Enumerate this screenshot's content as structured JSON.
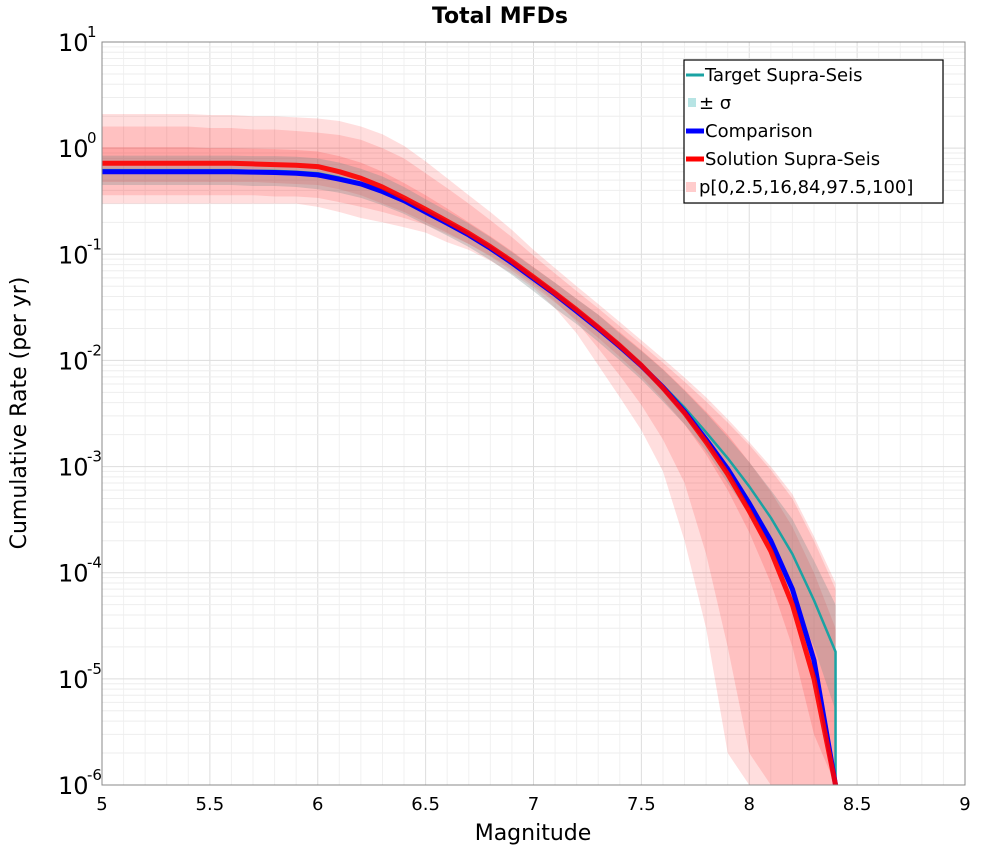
{
  "chart_data": {
    "type": "line",
    "title": "Total MFDs",
    "xlabel": "Magnitude",
    "ylabel": "Cumulative Rate (per yr)",
    "xlim": [
      5,
      9
    ],
    "ylim": [
      1e-06,
      10
    ],
    "yscale": "log",
    "grid": true,
    "xticks": [
      "5",
      "5.5",
      "6",
      "6.5",
      "7",
      "7.5",
      "8",
      "8.5",
      "9"
    ],
    "yticks": [
      {
        "base": "10",
        "exp": "1"
      },
      {
        "base": "10",
        "exp": "0"
      },
      {
        "base": "10",
        "exp": "-1"
      },
      {
        "base": "10",
        "exp": "-2"
      },
      {
        "base": "10",
        "exp": "-3"
      },
      {
        "base": "10",
        "exp": "-4"
      },
      {
        "base": "10",
        "exp": "-5"
      },
      {
        "base": "10",
        "exp": "-6"
      }
    ],
    "legend_position": "top-right",
    "legend": [
      "Target Supra-Seis",
      "± σ",
      "Comparison",
      "Solution Supra-Seis",
      "p[0,2.5,16,84,97.5,100]"
    ],
    "x": [
      5.0,
      5.1,
      5.2,
      5.3,
      5.4,
      5.5,
      5.6,
      5.7,
      5.8,
      5.9,
      6.0,
      6.1,
      6.2,
      6.3,
      6.4,
      6.5,
      6.6,
      6.7,
      6.8,
      6.9,
      7.0,
      7.1,
      7.2,
      7.3,
      7.4,
      7.5,
      7.6,
      7.7,
      7.8,
      7.9,
      8.0,
      8.1,
      8.2,
      8.3,
      8.4
    ],
    "series": [
      {
        "name": "Target Supra-Seis",
        "color": "#1aa3a3",
        "values": [
          0.62,
          0.62,
          0.62,
          0.62,
          0.62,
          0.62,
          0.62,
          0.61,
          0.61,
          0.6,
          0.58,
          0.53,
          0.47,
          0.4,
          0.32,
          0.25,
          0.195,
          0.15,
          0.112,
          0.082,
          0.058,
          0.041,
          0.029,
          0.02,
          0.0135,
          0.009,
          0.0058,
          0.0036,
          0.0021,
          0.0012,
          0.00065,
          0.00033,
          0.00015,
          5.5e-05,
          1.8e-05
        ],
        "sigma_band": {
          "color": "#b7e4e4",
          "lower": [
            0.45,
            0.45,
            0.45,
            0.45,
            0.45,
            0.45,
            0.45,
            0.44,
            0.44,
            0.43,
            0.41,
            0.38,
            0.34,
            0.29,
            0.24,
            0.19,
            0.15,
            0.117,
            0.088,
            0.064,
            0.045,
            0.031,
            0.022,
            0.015,
            0.01,
            0.0066,
            0.0041,
            0.0025,
            0.0014,
            0.0007,
            0.00035,
            0.00016,
            6e-05,
            2e-05,
            5e-06
          ],
          "upper": [
            0.85,
            0.85,
            0.85,
            0.85,
            0.85,
            0.85,
            0.85,
            0.84,
            0.84,
            0.83,
            0.8,
            0.73,
            0.64,
            0.54,
            0.43,
            0.33,
            0.255,
            0.195,
            0.145,
            0.105,
            0.075,
            0.054,
            0.038,
            0.027,
            0.018,
            0.0123,
            0.0082,
            0.0052,
            0.0032,
            0.0019,
            0.0011,
            0.0006,
            0.00032,
            0.00013,
            5e-05
          ]
        }
      },
      {
        "name": "Comparison",
        "color": "#0000ff",
        "values": [
          0.6,
          0.6,
          0.6,
          0.6,
          0.6,
          0.6,
          0.6,
          0.595,
          0.59,
          0.58,
          0.56,
          0.51,
          0.46,
          0.39,
          0.32,
          0.25,
          0.196,
          0.152,
          0.114,
          0.083,
          0.059,
          0.042,
          0.029,
          0.02,
          0.0135,
          0.0089,
          0.0056,
          0.0033,
          0.0018,
          0.00095,
          0.00045,
          0.0002,
          7e-05,
          1.5e-05,
          1e-06
        ]
      },
      {
        "name": "Solution Supra-Seis",
        "color": "#ff0000",
        "values": [
          0.72,
          0.72,
          0.72,
          0.72,
          0.72,
          0.72,
          0.72,
          0.71,
          0.7,
          0.69,
          0.67,
          0.6,
          0.52,
          0.43,
          0.34,
          0.265,
          0.205,
          0.158,
          0.118,
          0.086,
          0.061,
          0.043,
          0.03,
          0.0205,
          0.0138,
          0.009,
          0.0055,
          0.0032,
          0.0017,
          0.00085,
          0.00038,
          0.00016,
          5e-05,
          1e-05,
          1e-06
        ]
      }
    ],
    "percentile_bands": {
      "name": "p[0,2.5,16,84,97.5,100]",
      "color": "#ff0000",
      "outer": {
        "opacity": 0.13,
        "lower": [
          0.3,
          0.3,
          0.3,
          0.3,
          0.3,
          0.3,
          0.3,
          0.3,
          0.3,
          0.3,
          0.28,
          0.25,
          0.22,
          0.2,
          0.18,
          0.16,
          0.13,
          0.11,
          0.087,
          0.066,
          0.048,
          0.031,
          0.018,
          0.009,
          0.0045,
          0.0022,
          0.0009,
          0.0002,
          3e-05,
          2e-06,
          1e-06,
          1e-06,
          1e-06,
          1e-06,
          1e-06
        ],
        "upper": [
          2.1,
          2.1,
          2.1,
          2.1,
          2.1,
          2.05,
          2.05,
          2.0,
          2.0,
          1.95,
          1.9,
          1.8,
          1.6,
          1.35,
          1.05,
          0.75,
          0.52,
          0.36,
          0.25,
          0.17,
          0.11,
          0.074,
          0.05,
          0.034,
          0.023,
          0.0155,
          0.0104,
          0.0069,
          0.0045,
          0.0028,
          0.0017,
          0.001,
          0.00055,
          0.00022,
          8e-05
        ]
      },
      "middle": {
        "opacity": 0.13,
        "lower": [
          0.36,
          0.36,
          0.36,
          0.36,
          0.36,
          0.36,
          0.36,
          0.36,
          0.35,
          0.35,
          0.34,
          0.31,
          0.28,
          0.25,
          0.22,
          0.19,
          0.155,
          0.125,
          0.097,
          0.073,
          0.053,
          0.036,
          0.023,
          0.013,
          0.0072,
          0.0038,
          0.0018,
          0.0007,
          0.00015,
          2e-05,
          2e-06,
          1e-06,
          1e-06,
          1e-06,
          1e-06
        ],
        "upper": [
          1.6,
          1.6,
          1.6,
          1.6,
          1.6,
          1.55,
          1.55,
          1.5,
          1.5,
          1.45,
          1.4,
          1.33,
          1.2,
          1.0,
          0.8,
          0.58,
          0.42,
          0.3,
          0.21,
          0.145,
          0.097,
          0.066,
          0.045,
          0.031,
          0.021,
          0.0142,
          0.0095,
          0.0063,
          0.0041,
          0.0026,
          0.0016,
          0.00093,
          0.0005,
          0.0002,
          7e-05
        ]
      },
      "inner": {
        "opacity": 0.14,
        "lower": [
          0.48,
          0.48,
          0.48,
          0.48,
          0.48,
          0.48,
          0.48,
          0.48,
          0.47,
          0.46,
          0.45,
          0.41,
          0.36,
          0.3,
          0.25,
          0.2,
          0.16,
          0.125,
          0.095,
          0.07,
          0.05,
          0.035,
          0.024,
          0.0163,
          0.0108,
          0.007,
          0.0043,
          0.0025,
          0.0013,
          0.0006,
          0.00024,
          8e-05,
          2e-05,
          3e-06,
          1e-06
        ],
        "upper": [
          1.02,
          1.02,
          1.02,
          1.02,
          1.02,
          1.0,
          1.0,
          0.99,
          0.98,
          0.96,
          0.93,
          0.84,
          0.73,
          0.6,
          0.47,
          0.36,
          0.27,
          0.2,
          0.148,
          0.107,
          0.076,
          0.054,
          0.038,
          0.027,
          0.0185,
          0.0125,
          0.0083,
          0.0053,
          0.0033,
          0.002,
          0.0011,
          0.00058,
          0.00027,
          0.0001,
          3e-05
        ]
      }
    }
  }
}
